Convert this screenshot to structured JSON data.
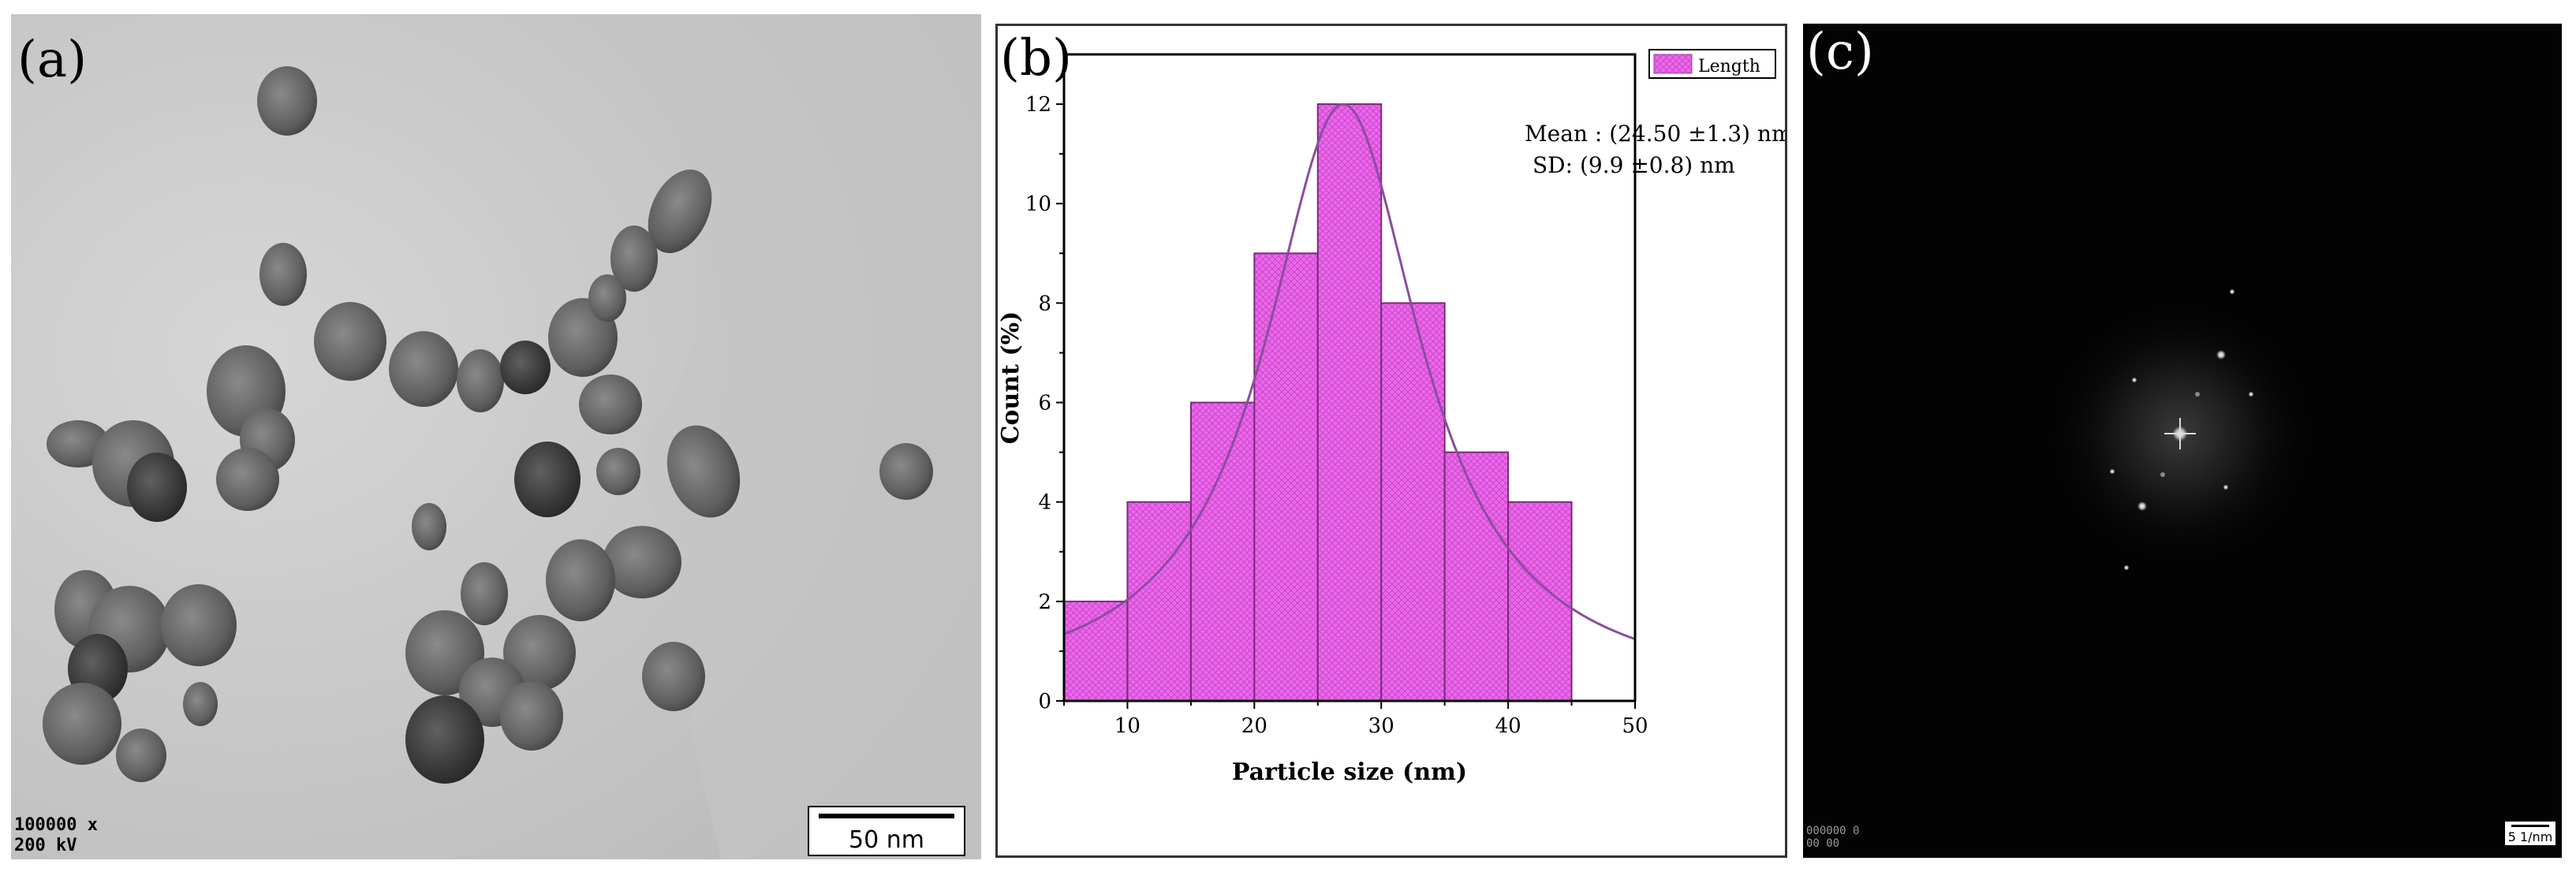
{
  "panels": {
    "a": {
      "label": "(a)",
      "magnification": "100000 x",
      "voltage": "200 kV",
      "scale_bar": "50 nm"
    },
    "b": {
      "label": "(b)"
    },
    "c": {
      "label": "(c)",
      "scale_bar": "5 1/nm",
      "footer_line1": "000000 0",
      "footer_line2": "00 00"
    }
  },
  "chart_data": {
    "type": "bar",
    "title": "",
    "xlabel": "Particle size (nm)",
    "ylabel": "Count (%)",
    "xlim": [
      5,
      50
    ],
    "ylim": [
      0,
      13
    ],
    "x_ticks": [
      10,
      20,
      30,
      40,
      50
    ],
    "y_ticks": [
      0,
      2,
      4,
      6,
      8,
      10,
      12
    ],
    "bin_width": 5,
    "bins": [
      {
        "start": 5,
        "end": 10,
        "value": 2
      },
      {
        "start": 10,
        "end": 15,
        "value": 4
      },
      {
        "start": 15,
        "end": 20,
        "value": 6
      },
      {
        "start": 20,
        "end": 25,
        "value": 9
      },
      {
        "start": 25,
        "end": 30,
        "value": 12
      },
      {
        "start": 30,
        "end": 35,
        "value": 8
      },
      {
        "start": 35,
        "end": 40,
        "value": 5
      },
      {
        "start": 40,
        "end": 45,
        "value": 4
      }
    ],
    "series": [
      {
        "name": "Length",
        "color": "#ee66ee"
      }
    ],
    "fit_curve": {
      "type": "lorentzian",
      "center": 27,
      "peak": 12,
      "half_width": 7.5,
      "baseline": 0.1
    },
    "annotations": [
      "Mean : (24.50 ±1.3) nm",
      "SD: (9.9 ±0.8) nm"
    ],
    "legend_position": "top-right"
  }
}
